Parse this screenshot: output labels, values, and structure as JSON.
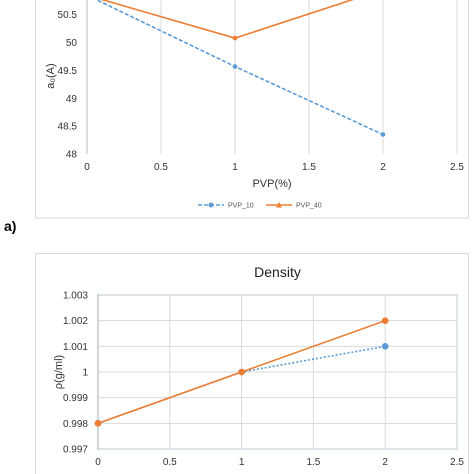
{
  "panel_label": "a)",
  "chart_data": [
    {
      "type": "line",
      "title": "",
      "xlabel": "PVP(%)",
      "ylabel": "a₀(A)",
      "xlim": [
        0,
        2.5
      ],
      "ylim": [
        48,
        50.8
      ],
      "xticks": [
        "0",
        "0.5",
        "1",
        "1.5",
        "2",
        "2.5"
      ],
      "yticks": [
        "48",
        "48.5",
        "49",
        "49.5",
        "50",
        "50.5"
      ],
      "grid": "vertical",
      "legend": "bottom",
      "series": [
        {
          "name": "PVP_10",
          "color": "#5b9bd5",
          "style": "dashed",
          "marker": "circle",
          "x": [
            0,
            1,
            2
          ],
          "y": [
            50.85,
            49.57,
            48.35
          ]
        },
        {
          "name": "PVP_40",
          "color": "#ed7d31",
          "style": "solid",
          "marker": "triangle",
          "x": [
            0,
            1,
            2
          ],
          "y": [
            50.85,
            50.08,
            50.95
          ]
        }
      ]
    },
    {
      "type": "line",
      "title": "Density",
      "xlabel": "",
      "ylabel": "ρ(g/ml)",
      "xlim": [
        0,
        2.5
      ],
      "ylim": [
        0.997,
        1.003
      ],
      "xticks": [
        "0",
        "0.5",
        "1",
        "1.5",
        "2",
        "2.5"
      ],
      "yticks": [
        "0.997",
        "0.998",
        "0.999",
        "1",
        "1.001",
        "1.002",
        "1.003"
      ],
      "grid": "both",
      "legend": "none",
      "series": [
        {
          "name": "",
          "color": "#5b9bd5",
          "style": "dotted",
          "marker": "circle",
          "x": [
            0,
            1,
            2
          ],
          "y": [
            0.998,
            1.0,
            1.001
          ]
        },
        {
          "name": "",
          "color": "#ed7d31",
          "style": "solid",
          "marker": "circle",
          "x": [
            0,
            1,
            2
          ],
          "y": [
            0.998,
            1.0,
            1.002
          ]
        }
      ]
    }
  ]
}
